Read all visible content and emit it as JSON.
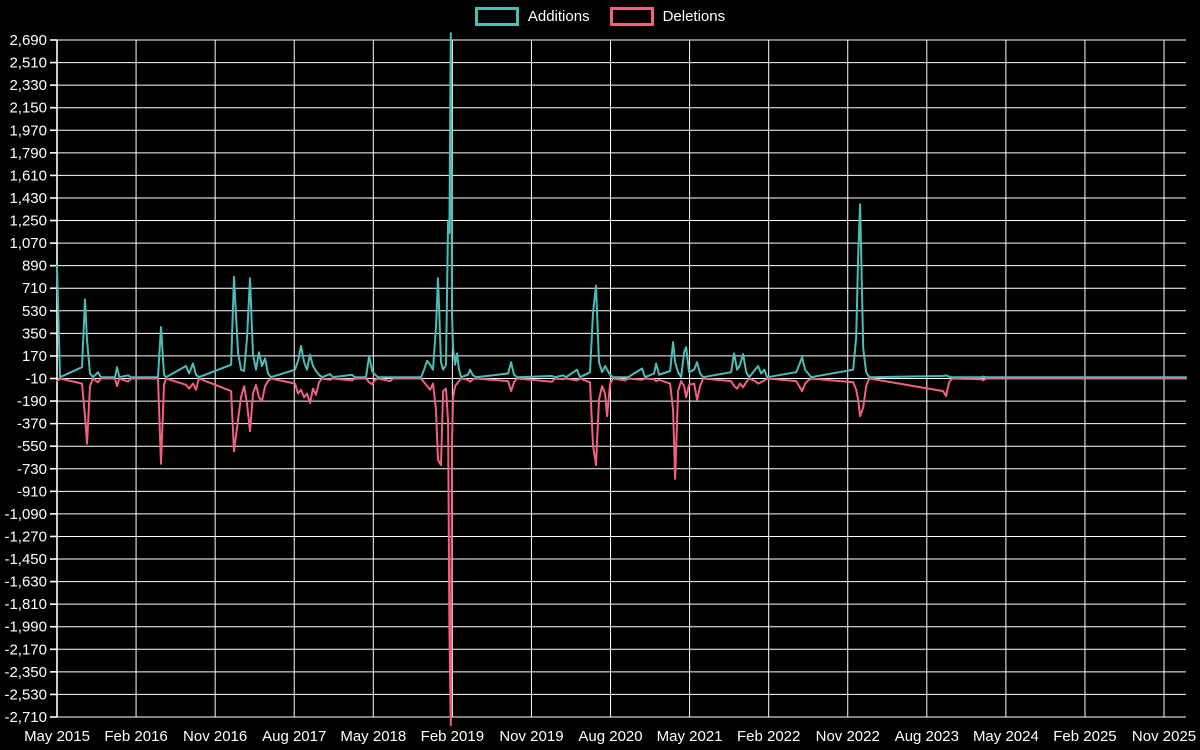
{
  "legend": {
    "additions_label": "Additions",
    "deletions_label": "Deletions"
  },
  "colors": {
    "additions": "#4cbcb4",
    "deletions": "#f2607f",
    "grid": "#ffffff",
    "text": "#ffffff",
    "background": "#000000"
  },
  "chart_data": {
    "type": "line",
    "title": "",
    "xlabel": "",
    "ylabel": "",
    "grid": true,
    "legend_position": "top-center",
    "series_names": [
      "Additions",
      "Deletions"
    ],
    "x_tick_labels": [
      "May 2015",
      "Feb 2016",
      "Nov 2016",
      "Aug 2017",
      "May 2018",
      "Feb 2019",
      "Nov 2019",
      "Aug 2020",
      "May 2021",
      "Feb 2022",
      "Nov 2022",
      "Aug 2023",
      "May 2024",
      "Feb 2025",
      "Nov 2025"
    ],
    "x_tick_months": [
      0,
      9,
      18,
      27,
      36,
      45,
      54,
      63,
      72,
      81,
      90,
      99,
      108,
      117,
      126
    ],
    "x_domain": [
      0,
      128.5
    ],
    "x_unit": "months since May 2015",
    "y_ticks": [
      2690,
      2510,
      2330,
      2150,
      1970,
      1790,
      1610,
      1430,
      1250,
      1070,
      890,
      710,
      530,
      350,
      170,
      -10,
      -190,
      -370,
      -550,
      -730,
      -910,
      -1090,
      -1270,
      -1450,
      -1630,
      -1810,
      -1990,
      -2170,
      -2350,
      -2530,
      -2710
    ],
    "y_domain": [
      -2710,
      2690
    ],
    "points_format": "[months_since_May_2015, additions, deletions]",
    "points": [
      [
        0,
        890,
        -20
      ],
      [
        0.34,
        0,
        0
      ],
      [
        2.85,
        80,
        -40
      ],
      [
        3.19,
        620,
        -300
      ],
      [
        3.42,
        300,
        -520
      ],
      [
        3.76,
        30,
        -60
      ],
      [
        4.1,
        0,
        0
      ],
      [
        4.67,
        40,
        -30
      ],
      [
        5.0,
        0,
        0
      ],
      [
        6.6,
        0,
        0
      ],
      [
        6.83,
        80,
        -60
      ],
      [
        7.1,
        0,
        0
      ],
      [
        8.08,
        15,
        -25
      ],
      [
        8.4,
        0,
        0
      ],
      [
        11.5,
        0,
        0
      ],
      [
        11.84,
        400,
        -680
      ],
      [
        12.18,
        20,
        -50
      ],
      [
        12.41,
        0,
        0
      ],
      [
        14.68,
        90,
        -50
      ],
      [
        15.03,
        30,
        -80
      ],
      [
        15.48,
        110,
        -40
      ],
      [
        15.82,
        20,
        -90
      ],
      [
        16.16,
        0,
        0
      ],
      [
        19.81,
        100,
        -100
      ],
      [
        20.15,
        800,
        -580
      ],
      [
        20.6,
        200,
        -330
      ],
      [
        20.94,
        60,
        -150
      ],
      [
        21.29,
        50,
        -60
      ],
      [
        21.63,
        310,
        -200
      ],
      [
        21.97,
        790,
        -420
      ],
      [
        22.31,
        180,
        -120
      ],
      [
        22.65,
        60,
        -50
      ],
      [
        22.99,
        200,
        -150
      ],
      [
        23.33,
        90,
        -180
      ],
      [
        23.68,
        150,
        -60
      ],
      [
        24.02,
        30,
        -20
      ],
      [
        24.36,
        0,
        0
      ],
      [
        27.09,
        60,
        -40
      ],
      [
        27.43,
        130,
        -120
      ],
      [
        27.77,
        250,
        -90
      ],
      [
        28.12,
        120,
        -150
      ],
      [
        28.46,
        60,
        -120
      ],
      [
        28.8,
        180,
        -195
      ],
      [
        29.14,
        90,
        -80
      ],
      [
        29.48,
        50,
        -130
      ],
      [
        29.82,
        20,
        -30
      ],
      [
        30.16,
        0,
        0
      ],
      [
        31.07,
        25,
        -10
      ],
      [
        31.4,
        0,
        0
      ],
      [
        33.58,
        20,
        -15
      ],
      [
        33.9,
        0,
        0
      ],
      [
        35.17,
        0,
        0
      ],
      [
        35.52,
        170,
        -30
      ],
      [
        35.86,
        50,
        -45
      ],
      [
        36.2,
        20,
        -10
      ],
      [
        36.54,
        0,
        0
      ],
      [
        37.91,
        0,
        -20
      ],
      [
        38.25,
        0,
        0
      ],
      [
        41.44,
        0,
        0
      ],
      [
        41.78,
        60,
        -30
      ],
      [
        42.12,
        130,
        -60
      ],
      [
        42.46,
        100,
        -90
      ],
      [
        42.8,
        60,
        -40
      ],
      [
        43.14,
        400,
        -250
      ],
      [
        43.37,
        790,
        -650
      ],
      [
        43.71,
        120,
        -690
      ],
      [
        43.94,
        60,
        -100
      ],
      [
        44.28,
        100,
        -80
      ],
      [
        44.51,
        1250,
        -350
      ],
      [
        44.66,
        1150,
        -1990
      ],
      [
        44.82,
        2745,
        -2765
      ],
      [
        44.96,
        500,
        -500
      ],
      [
        45.08,
        230,
        -150
      ],
      [
        45.31,
        100,
        -60
      ],
      [
        45.53,
        190,
        -40
      ],
      [
        45.76,
        60,
        -20
      ],
      [
        45.99,
        0,
        0
      ],
      [
        46.78,
        20,
        -10
      ],
      [
        47.01,
        60,
        -25
      ],
      [
        47.35,
        15,
        -5
      ],
      [
        47.69,
        0,
        0
      ],
      [
        51.34,
        30,
        -20
      ],
      [
        51.68,
        120,
        -100
      ],
      [
        52.02,
        20,
        -30
      ],
      [
        52.36,
        0,
        0
      ],
      [
        56.34,
        10,
        -25
      ],
      [
        56.68,
        0,
        0
      ],
      [
        57.6,
        15,
        -5
      ],
      [
        57.94,
        0,
        0
      ],
      [
        59.19,
        60,
        -15
      ],
      [
        59.53,
        0,
        0
      ],
      [
        60.67,
        40,
        -30
      ],
      [
        61.01,
        510,
        -530
      ],
      [
        61.35,
        730,
        -690
      ],
      [
        61.69,
        120,
        -170
      ],
      [
        62.04,
        40,
        -60
      ],
      [
        62.38,
        90,
        -120
      ],
      [
        62.61,
        60,
        -300
      ],
      [
        62.95,
        20,
        -40
      ],
      [
        63.29,
        0,
        0
      ],
      [
        64.66,
        0,
        -15
      ],
      [
        65.0,
        0,
        0
      ],
      [
        66.59,
        70,
        -10
      ],
      [
        66.93,
        0,
        0
      ],
      [
        67.96,
        30,
        -5
      ],
      [
        68.19,
        110,
        -20
      ],
      [
        68.53,
        20,
        -10
      ],
      [
        69.78,
        50,
        -40
      ],
      [
        70.12,
        280,
        -250
      ],
      [
        70.35,
        120,
        -800
      ],
      [
        70.69,
        40,
        -100
      ],
      [
        71.03,
        0,
        -20
      ],
      [
        71.38,
        200,
        -60
      ],
      [
        71.6,
        240,
        -150
      ],
      [
        71.94,
        40,
        -50
      ],
      [
        72.51,
        60,
        -40
      ],
      [
        72.86,
        120,
        -170
      ],
      [
        73.2,
        30,
        -60
      ],
      [
        73.54,
        0,
        0
      ],
      [
        76.73,
        40,
        -20
      ],
      [
        77.07,
        190,
        -60
      ],
      [
        77.41,
        60,
        -80
      ],
      [
        77.75,
        100,
        -40
      ],
      [
        78.09,
        185,
        -70
      ],
      [
        78.44,
        40,
        -30
      ],
      [
        78.78,
        0,
        0
      ],
      [
        79.46,
        60,
        -20
      ],
      [
        79.8,
        90,
        -40
      ],
      [
        80.14,
        30,
        -30
      ],
      [
        80.49,
        60,
        -15
      ],
      [
        80.83,
        0,
        0
      ],
      [
        84.13,
        40,
        -20
      ],
      [
        84.47,
        100,
        -60
      ],
      [
        84.81,
        160,
        -100
      ],
      [
        85.15,
        60,
        -40
      ],
      [
        85.5,
        30,
        -15
      ],
      [
        85.84,
        0,
        0
      ],
      [
        90.62,
        60,
        -30
      ],
      [
        90.96,
        320,
        -90
      ],
      [
        91.19,
        980,
        -170
      ],
      [
        91.41,
        1380,
        -300
      ],
      [
        91.76,
        230,
        -230
      ],
      [
        92.1,
        40,
        -60
      ],
      [
        92.44,
        0,
        0
      ],
      [
        100.86,
        10,
        -100
      ],
      [
        101.2,
        15,
        -140
      ],
      [
        101.54,
        5,
        -30
      ],
      [
        101.89,
        0,
        0
      ],
      [
        105.19,
        0,
        -5
      ],
      [
        105.41,
        5,
        -15
      ],
      [
        105.75,
        0,
        0
      ],
      [
        128.5,
        0,
        0
      ]
    ]
  }
}
